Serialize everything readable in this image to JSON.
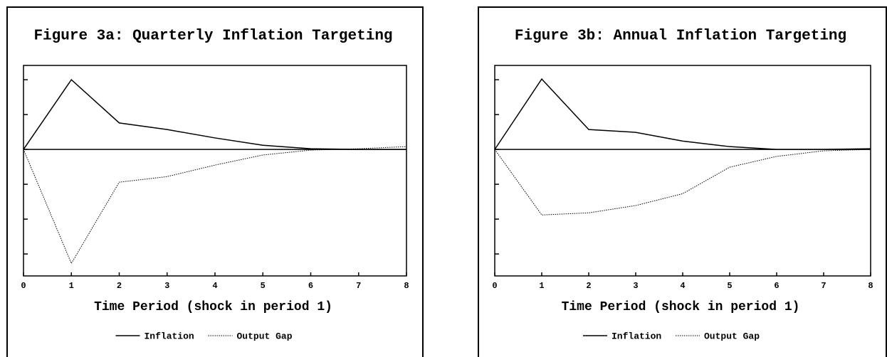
{
  "chart_data": [
    {
      "type": "line",
      "title": "Figure 3a: Quarterly Inflation Targeting",
      "xlabel": "Time Period (shock in period 1)",
      "x": [
        0,
        1,
        2,
        3,
        4,
        5,
        6,
        7,
        8
      ],
      "series": [
        {
          "name": "Inflation",
          "color": "#000000",
          "style": "solid",
          "values": [
            0,
            2.0,
            0.76,
            0.57,
            0.33,
            0.12,
            0.02,
            0,
            0
          ]
        },
        {
          "name": "Output Gap",
          "color": "#000000",
          "style": "dotted",
          "values": [
            0,
            -3.27,
            -0.94,
            -0.78,
            -0.45,
            -0.16,
            -0.02,
            0.02,
            0.08
          ]
        }
      ],
      "xlim": [
        0,
        8
      ],
      "xticks": [
        0,
        1,
        2,
        3,
        4,
        5,
        6,
        7,
        8
      ],
      "ylim": [
        -3.63,
        2.41
      ],
      "yticks": [
        -3,
        -2,
        -1,
        0,
        1,
        2
      ]
    },
    {
      "type": "line",
      "title": "Figure 3b: Annual Inflation Targeting",
      "xlabel": "Time Period (shock in period 1)",
      "x": [
        0,
        1,
        2,
        3,
        4,
        5,
        6,
        7,
        8
      ],
      "series": [
        {
          "name": "Inflation",
          "color": "#000000",
          "style": "solid",
          "values": [
            0,
            2.02,
            0.57,
            0.49,
            0.24,
            0.08,
            0,
            0,
            0.02
          ]
        },
        {
          "name": "Output Gap",
          "color": "#000000",
          "style": "dotted",
          "values": [
            0,
            -1.88,
            -1.82,
            -1.61,
            -1.27,
            -0.51,
            -0.2,
            -0.04,
            0
          ]
        }
      ],
      "xlim": [
        0,
        8
      ],
      "xticks": [
        0,
        1,
        2,
        3,
        4,
        5,
        6,
        7,
        8
      ],
      "ylim": [
        -3.63,
        2.41
      ],
      "yticks": [
        -3,
        -2,
        -1,
        0,
        1,
        2
      ]
    }
  ]
}
